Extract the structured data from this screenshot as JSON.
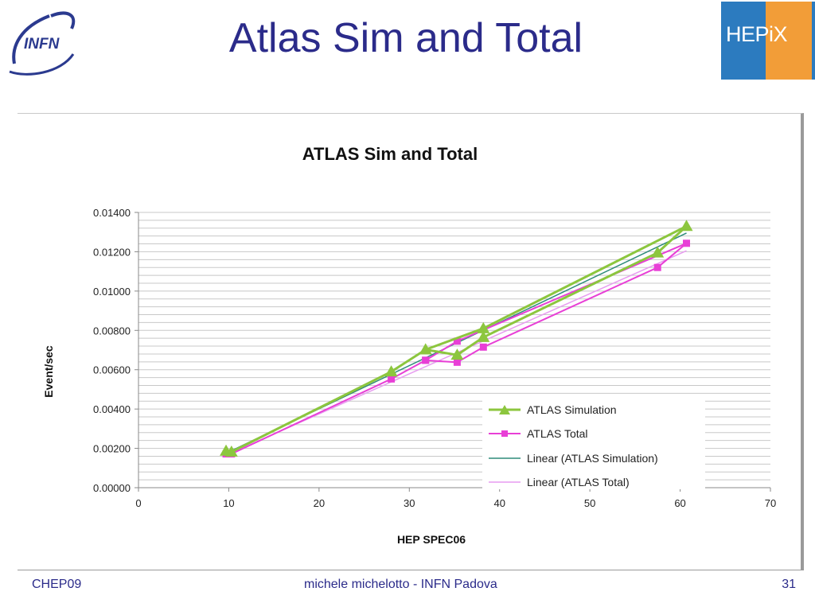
{
  "slide": {
    "title": "Atlas Sim and Total",
    "logo_left_text": "INFN",
    "logo_right_text_main": "HEP",
    "logo_right_text_suffix": "iX",
    "footer_left": "CHEP09",
    "footer_center": "michele michelotto - INFN Padova",
    "footer_right": "31"
  },
  "colors": {
    "title_text": "#2b2b8a",
    "sim_series": "#8cc63e",
    "total_series": "#e83fd6",
    "sim_trend": "#2e8b7a",
    "total_trend": "#e79cf0",
    "hepix_blue": "#2c7bbf",
    "hepix_orange": "#f29d38"
  },
  "chart_data": {
    "type": "line",
    "title": "ATLAS Sim and Total",
    "xlabel": "HEP SPEC06",
    "ylabel": "Event/sec",
    "xlim": [
      0,
      70
    ],
    "ylim": [
      0,
      0.014
    ],
    "x_ticks": [
      0,
      10,
      20,
      30,
      40,
      50,
      60,
      70
    ],
    "y_ticks": [
      0.0,
      0.002,
      0.004,
      0.006,
      0.008,
      0.01,
      0.012,
      0.014
    ],
    "y_tick_labels": [
      "0.00000",
      "0.00200",
      "0.00400",
      "0.00600",
      "0.00800",
      "0.01000",
      "0.01200",
      "0.01400"
    ],
    "grid": true,
    "legend_position": "bottom-right",
    "series": [
      {
        "name": "ATLAS Simulation",
        "marker": "triangle",
        "x": [
          9.7,
          10.3,
          28,
          31.8,
          35.3,
          38.2,
          57.5,
          60.7,
          38.2,
          31.8
        ],
        "y": [
          0.00187,
          0.00182,
          0.0059,
          0.00702,
          0.00675,
          0.00765,
          0.01195,
          0.0133,
          0.0081,
          0.00702
        ]
      },
      {
        "name": "ATLAS Total",
        "marker": "square",
        "x": [
          9.7,
          10.3,
          28,
          31.8,
          35.3,
          38.2,
          57.5,
          60.7,
          35.3,
          31.8
        ],
        "y": [
          0.00172,
          0.00172,
          0.00553,
          0.00648,
          0.00638,
          0.00715,
          0.0112,
          0.01243,
          0.00745,
          0.00648
        ]
      },
      {
        "name": "Linear (ATLAS Simulation)",
        "type": "trend",
        "x": [
          9.7,
          60.7
        ],
        "y": [
          0.00175,
          0.01295
        ]
      },
      {
        "name": "Linear (ATLAS Total)",
        "type": "trend",
        "x": [
          9.7,
          60.7
        ],
        "y": [
          0.00165,
          0.01205
        ]
      }
    ]
  }
}
